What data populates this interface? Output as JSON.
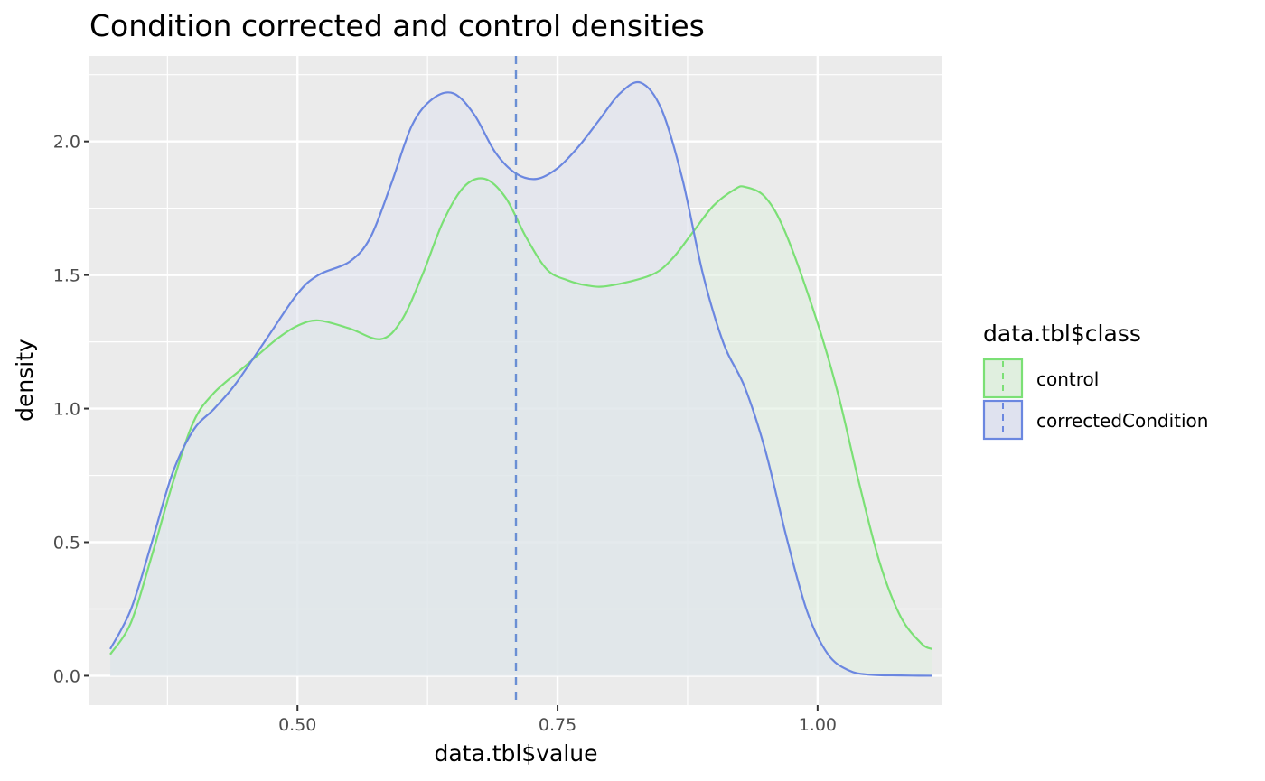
{
  "chart_data": {
    "type": "area",
    "title": "Condition corrected and control densities",
    "xlabel": "data.tbl$value",
    "ylabel": "density",
    "xlim": [
      0.3,
      1.12
    ],
    "ylim": [
      -0.11,
      2.32
    ],
    "x_ticks": [
      0.5,
      0.75,
      1.0
    ],
    "x_tick_labels": [
      "0.50",
      "0.75",
      "1.00"
    ],
    "y_ticks": [
      0.0,
      0.5,
      1.0,
      1.5,
      2.0
    ],
    "y_tick_labels": [
      "0.0",
      "0.5",
      "1.0",
      "1.5",
      "2.0"
    ],
    "grid": true,
    "legend": {
      "title": "data.tbl$class",
      "position": "right"
    },
    "vline": {
      "x": 0.71,
      "color": "#6a8fd4",
      "style": "dashed"
    },
    "series": [
      {
        "name": "control",
        "color": "#7be075",
        "fill": "#e0efdf",
        "x": [
          0.32,
          0.34,
          0.36,
          0.38,
          0.4,
          0.42,
          0.45,
          0.48,
          0.5,
          0.52,
          0.55,
          0.58,
          0.6,
          0.62,
          0.64,
          0.66,
          0.68,
          0.7,
          0.72,
          0.74,
          0.76,
          0.78,
          0.8,
          0.84,
          0.86,
          0.88,
          0.9,
          0.92,
          0.93,
          0.95,
          0.97,
          1.0,
          1.02,
          1.04,
          1.06,
          1.08,
          1.1,
          1.11
        ],
        "y": [
          0.08,
          0.2,
          0.45,
          0.72,
          0.95,
          1.06,
          1.16,
          1.26,
          1.31,
          1.33,
          1.3,
          1.26,
          1.33,
          1.5,
          1.7,
          1.83,
          1.86,
          1.79,
          1.64,
          1.52,
          1.48,
          1.46,
          1.46,
          1.5,
          1.56,
          1.66,
          1.76,
          1.82,
          1.83,
          1.79,
          1.65,
          1.32,
          1.05,
          0.72,
          0.42,
          0.22,
          0.12,
          0.1
        ]
      },
      {
        "name": "correctedCondition",
        "color": "#6b87e0",
        "fill": "#dfe2ef",
        "x": [
          0.32,
          0.34,
          0.36,
          0.38,
          0.4,
          0.42,
          0.44,
          0.47,
          0.5,
          0.52,
          0.55,
          0.57,
          0.59,
          0.61,
          0.63,
          0.65,
          0.67,
          0.69,
          0.71,
          0.73,
          0.75,
          0.77,
          0.79,
          0.81,
          0.83,
          0.85,
          0.87,
          0.89,
          0.91,
          0.93,
          0.95,
          0.97,
          0.99,
          1.01,
          1.03,
          1.05,
          1.08,
          1.11
        ],
        "y": [
          0.1,
          0.25,
          0.5,
          0.76,
          0.92,
          1.0,
          1.09,
          1.26,
          1.43,
          1.5,
          1.55,
          1.64,
          1.84,
          2.06,
          2.16,
          2.18,
          2.1,
          1.96,
          1.88,
          1.86,
          1.9,
          1.98,
          2.08,
          2.18,
          2.22,
          2.12,
          1.86,
          1.5,
          1.24,
          1.08,
          0.84,
          0.52,
          0.24,
          0.08,
          0.02,
          0.004,
          0.001,
          0.0
        ]
      }
    ]
  }
}
